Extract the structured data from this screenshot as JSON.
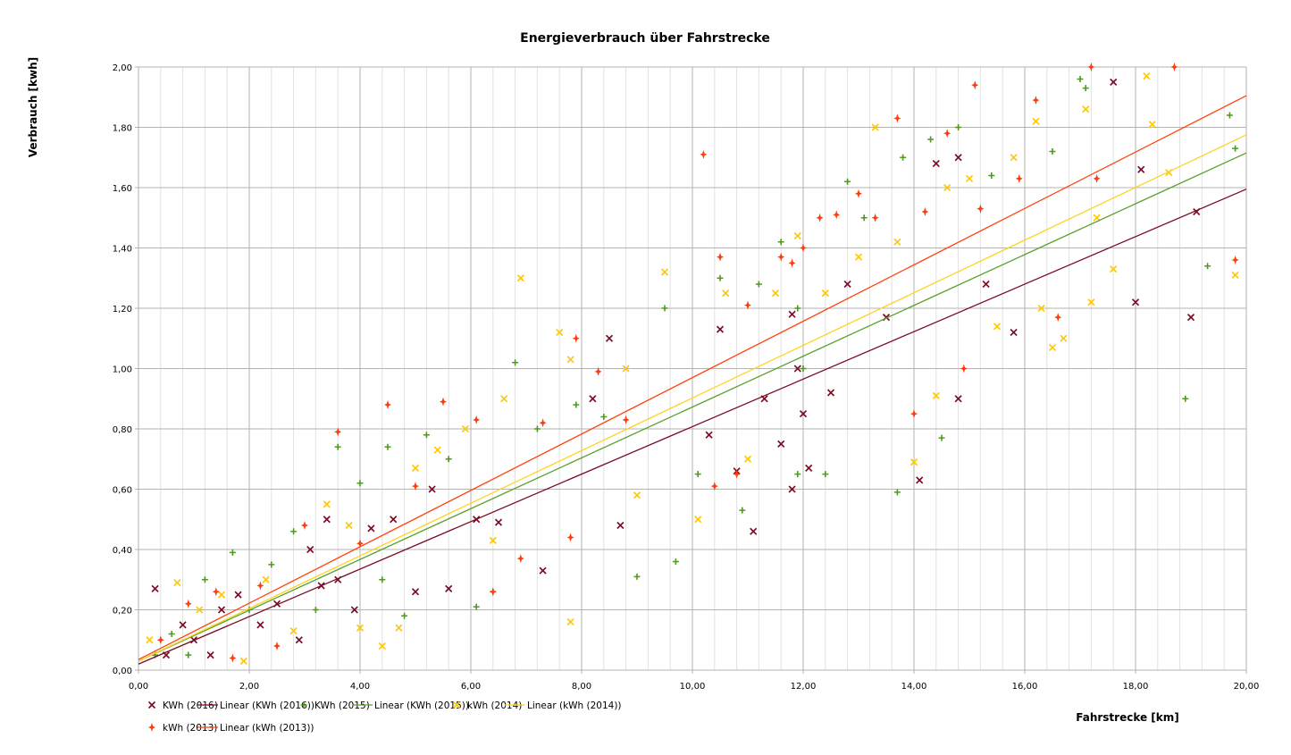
{
  "chart_data": {
    "type": "scatter",
    "title": "Energieverbrauch über Fahrstrecke",
    "xlabel": "Fahrstrecke [km]",
    "ylabel": "Verbrauch [kwh]",
    "xlim": [
      0,
      20
    ],
    "ylim": [
      0,
      2
    ],
    "x_ticks": [
      "0,00",
      "2,00",
      "4,00",
      "6,00",
      "8,00",
      "10,00",
      "12,00",
      "14,00",
      "16,00",
      "18,00",
      "20,00"
    ],
    "y_ticks": [
      "0,00",
      "0,20",
      "0,40",
      "0,60",
      "0,80",
      "1,00",
      "1,20",
      "1,40",
      "1,60",
      "1,80",
      "2,00"
    ],
    "grid": true,
    "legend_position": "bottom",
    "series": [
      {
        "name": "KWh (2016)",
        "marker": "x",
        "color": "#7b0b24",
        "trend": {
          "name": "Linear (KWh (2016))",
          "color": "#7b0b24",
          "intercept": 0.02,
          "slope": 0.07875
        },
        "points": [
          [
            0.3,
            0.27
          ],
          [
            0.5,
            0.05
          ],
          [
            0.8,
            0.15
          ],
          [
            1,
            0.1
          ],
          [
            1.3,
            0.05
          ],
          [
            1.5,
            0.2
          ],
          [
            1.8,
            0.25
          ],
          [
            2.2,
            0.15
          ],
          [
            2.5,
            0.22
          ],
          [
            2.9,
            0.1
          ],
          [
            3.1,
            0.4
          ],
          [
            3.3,
            0.28
          ],
          [
            3.4,
            0.5
          ],
          [
            3.6,
            0.3
          ],
          [
            3.9,
            0.2
          ],
          [
            4.2,
            0.47
          ],
          [
            4.6,
            0.5
          ],
          [
            5.0,
            0.26
          ],
          [
            5.3,
            0.6
          ],
          [
            5.6,
            0.27
          ],
          [
            6.1,
            0.5
          ],
          [
            6.5,
            0.49
          ],
          [
            7.3,
            0.33
          ],
          [
            8.2,
            0.9
          ],
          [
            8.5,
            1.1
          ],
          [
            8.7,
            0.48
          ],
          [
            10.3,
            0.78
          ],
          [
            10.5,
            1.13
          ],
          [
            10.8,
            0.66
          ],
          [
            11.1,
            0.46
          ],
          [
            11.3,
            0.9
          ],
          [
            11.6,
            0.75
          ],
          [
            11.8,
            1.18
          ],
          [
            11.8,
            0.6
          ],
          [
            11.9,
            1.0
          ],
          [
            12.0,
            0.85
          ],
          [
            12.1,
            0.67
          ],
          [
            12.5,
            0.92
          ],
          [
            12.8,
            1.28
          ],
          [
            13.5,
            1.17
          ],
          [
            14.1,
            0.63
          ],
          [
            14.4,
            1.68
          ],
          [
            14.8,
            1.7
          ],
          [
            14.8,
            0.9
          ],
          [
            15.3,
            1.28
          ],
          [
            15.8,
            1.12
          ],
          [
            17.6,
            1.95
          ],
          [
            18.0,
            1.22
          ],
          [
            18.1,
            1.66
          ],
          [
            19.0,
            1.17
          ],
          [
            19.1,
            1.52
          ]
        ]
      },
      {
        "name": "KWh (2015)",
        "marker": "plus",
        "color": "#4e9a1e",
        "trend": {
          "name": "Linear (KWh (2015))",
          "color": "#5aa02c",
          "intercept": 0.03,
          "slope": 0.08425
        },
        "points": [
          [
            0.3,
            0.05
          ],
          [
            0.6,
            0.12
          ],
          [
            0.9,
            0.05
          ],
          [
            1.2,
            0.3
          ],
          [
            1.7,
            0.39
          ],
          [
            2.0,
            0.2
          ],
          [
            2.4,
            0.35
          ],
          [
            2.8,
            0.46
          ],
          [
            3.2,
            0.2
          ],
          [
            3.6,
            0.74
          ],
          [
            4.0,
            0.62
          ],
          [
            4.4,
            0.3
          ],
          [
            4.5,
            0.74
          ],
          [
            4.8,
            0.18
          ],
          [
            5.2,
            0.78
          ],
          [
            5.6,
            0.7
          ],
          [
            6.1,
            0.21
          ],
          [
            6.4,
            0.26
          ],
          [
            6.8,
            1.02
          ],
          [
            7.2,
            0.8
          ],
          [
            7.9,
            0.88
          ],
          [
            8.4,
            0.84
          ],
          [
            9.0,
            0.31
          ],
          [
            9.5,
            1.2
          ],
          [
            9.7,
            0.36
          ],
          [
            10.1,
            0.65
          ],
          [
            10.5,
            1.3
          ],
          [
            10.9,
            0.53
          ],
          [
            11.2,
            1.28
          ],
          [
            11.6,
            1.42
          ],
          [
            11.9,
            1.2
          ],
          [
            11.9,
            0.65
          ],
          [
            12.0,
            1.0
          ],
          [
            12.4,
            0.65
          ],
          [
            12.8,
            1.62
          ],
          [
            13.1,
            1.5
          ],
          [
            13.7,
            0.59
          ],
          [
            13.8,
            1.7
          ],
          [
            14.3,
            1.76
          ],
          [
            14.5,
            0.77
          ],
          [
            14.8,
            1.8
          ],
          [
            15.4,
            1.64
          ],
          [
            16.5,
            1.72
          ],
          [
            17.0,
            1.96
          ],
          [
            17.1,
            1.93
          ],
          [
            18.9,
            0.9
          ],
          [
            19.3,
            1.34
          ],
          [
            19.7,
            1.84
          ],
          [
            19.8,
            1.73
          ]
        ]
      },
      {
        "name": "kWh (2014)",
        "marker": "x",
        "color": "#ffc800",
        "trend": {
          "name": "Linear (kWh (2014))",
          "color": "#ffd320",
          "intercept": 0.03,
          "slope": 0.08725
        },
        "points": [
          [
            0.2,
            0.1
          ],
          [
            0.7,
            0.29
          ],
          [
            1.1,
            0.2
          ],
          [
            1.5,
            0.25
          ],
          [
            1.9,
            0.03
          ],
          [
            2.3,
            0.3
          ],
          [
            2.8,
            0.13
          ],
          [
            3.4,
            0.55
          ],
          [
            3.8,
            0.48
          ],
          [
            4.0,
            0.14
          ],
          [
            4.4,
            0.08
          ],
          [
            4.7,
            0.14
          ],
          [
            5.0,
            0.67
          ],
          [
            5.4,
            0.73
          ],
          [
            5.9,
            0.8
          ],
          [
            6.4,
            0.43
          ],
          [
            6.6,
            0.9
          ],
          [
            6.9,
            1.3
          ],
          [
            7.6,
            1.12
          ],
          [
            7.8,
            0.16
          ],
          [
            7.8,
            1.03
          ],
          [
            8.8,
            1.0
          ],
          [
            9.0,
            0.58
          ],
          [
            9.5,
            1.32
          ],
          [
            10.1,
            0.5
          ],
          [
            10.6,
            1.25
          ],
          [
            11.0,
            0.7
          ],
          [
            11.5,
            1.25
          ],
          [
            11.9,
            1.44
          ],
          [
            12.4,
            1.25
          ],
          [
            13.0,
            1.37
          ],
          [
            13.3,
            1.8
          ],
          [
            13.7,
            1.42
          ],
          [
            14.0,
            0.69
          ],
          [
            14.4,
            0.91
          ],
          [
            14.6,
            1.6
          ],
          [
            15.0,
            1.63
          ],
          [
            15.5,
            1.14
          ],
          [
            15.8,
            1.7
          ],
          [
            16.2,
            1.82
          ],
          [
            16.3,
            1.2
          ],
          [
            16.5,
            1.07
          ],
          [
            16.7,
            1.1
          ],
          [
            17.1,
            1.86
          ],
          [
            17.2,
            1.22
          ],
          [
            17.3,
            1.5
          ],
          [
            17.6,
            1.33
          ],
          [
            18.2,
            1.97
          ],
          [
            18.3,
            1.81
          ],
          [
            18.6,
            1.65
          ],
          [
            19.8,
            1.31
          ]
        ]
      },
      {
        "name": "kWh (2013)",
        "marker": "star",
        "color": "#ff3b0a",
        "trend": {
          "name": "Linear (kWh (2013))",
          "color": "#ff420e",
          "intercept": 0.035,
          "slope": 0.0935
        },
        "points": [
          [
            0.4,
            0.1
          ],
          [
            0.9,
            0.22
          ],
          [
            1.4,
            0.26
          ],
          [
            1.7,
            0.04
          ],
          [
            2.2,
            0.28
          ],
          [
            2.5,
            0.08
          ],
          [
            3.0,
            0.48
          ],
          [
            3.6,
            0.79
          ],
          [
            4.0,
            0.42
          ],
          [
            4.5,
            0.88
          ],
          [
            5.0,
            0.61
          ],
          [
            5.5,
            0.89
          ],
          [
            6.1,
            0.83
          ],
          [
            6.4,
            0.26
          ],
          [
            6.9,
            0.37
          ],
          [
            7.3,
            0.82
          ],
          [
            7.8,
            0.44
          ],
          [
            7.9,
            1.1
          ],
          [
            8.3,
            0.99
          ],
          [
            8.8,
            0.83
          ],
          [
            10.2,
            1.71
          ],
          [
            10.4,
            0.61
          ],
          [
            10.5,
            1.37
          ],
          [
            10.8,
            0.65
          ],
          [
            11.0,
            1.21
          ],
          [
            11.6,
            1.37
          ],
          [
            11.8,
            1.35
          ],
          [
            12.0,
            1.4
          ],
          [
            12.3,
            1.5
          ],
          [
            12.6,
            1.51
          ],
          [
            13.0,
            1.58
          ],
          [
            13.3,
            1.5
          ],
          [
            13.7,
            1.83
          ],
          [
            14.0,
            0.85
          ],
          [
            14.2,
            1.52
          ],
          [
            14.6,
            1.78
          ],
          [
            14.9,
            1.0
          ],
          [
            15.1,
            1.94
          ],
          [
            15.2,
            1.53
          ],
          [
            15.9,
            1.63
          ],
          [
            16.2,
            1.89
          ],
          [
            16.6,
            1.17
          ],
          [
            17.2,
            2.0
          ],
          [
            17.3,
            1.63
          ],
          [
            18.7,
            2.0
          ],
          [
            19.8,
            1.36
          ]
        ]
      }
    ]
  }
}
